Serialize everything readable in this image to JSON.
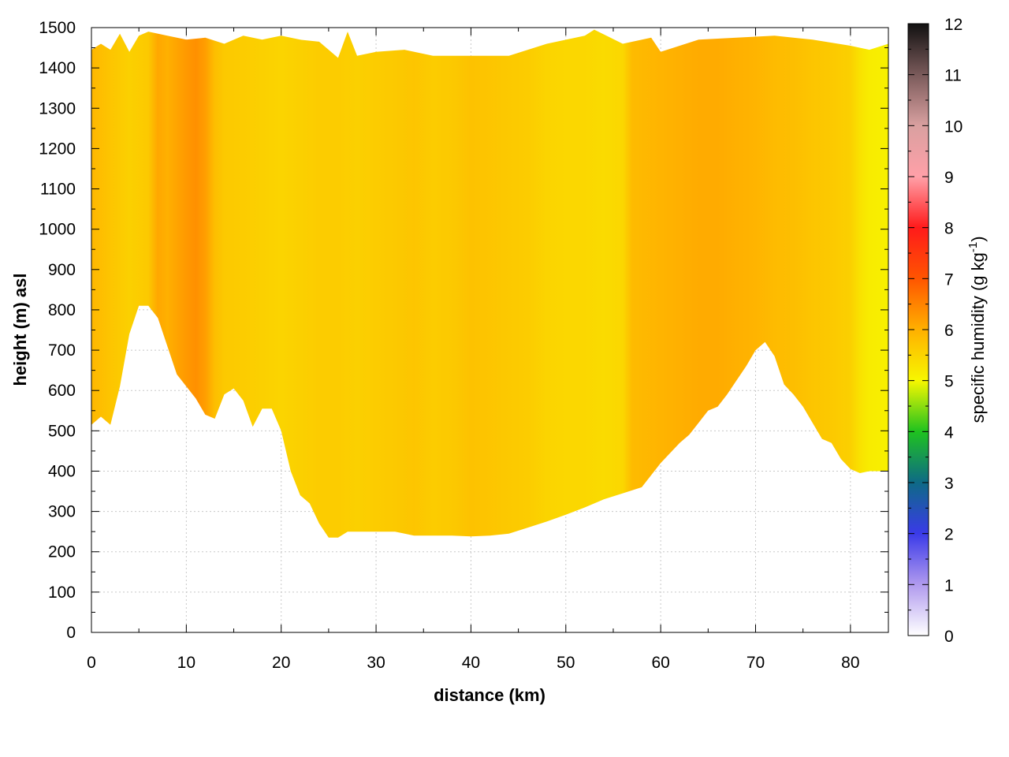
{
  "chart_data": {
    "type": "heatmap",
    "xlabel": "distance (km)",
    "ylabel": "height (m) asl",
    "colorbar": {
      "label_main": "specific humidity (g kg",
      "label_sup": "-1",
      "label_close": ")",
      "range": [
        0,
        12
      ],
      "ticks": [
        "0",
        "1",
        "2",
        "3",
        "4",
        "5",
        "6",
        "7",
        "8",
        "9",
        "10",
        "11",
        "12"
      ],
      "colormap": [
        [
          0,
          "#ffffff"
        ],
        [
          1,
          "#b09aee"
        ],
        [
          2,
          "#3a3ae8"
        ],
        [
          3,
          "#0e6a86"
        ],
        [
          4,
          "#1fc21f"
        ],
        [
          5,
          "#f7f700"
        ],
        [
          6,
          "#ffb000"
        ],
        [
          7,
          "#ff5500"
        ],
        [
          8,
          "#ff1a1a"
        ],
        [
          9,
          "#ffa0a8"
        ],
        [
          10,
          "#d9a0a0"
        ],
        [
          11,
          "#7a5a5a"
        ],
        [
          12,
          "#111111"
        ]
      ]
    },
    "xlim": [
      0,
      84
    ],
    "ylim": [
      0,
      1500
    ],
    "x_ticks": [
      "0",
      "10",
      "20",
      "30",
      "40",
      "50",
      "60",
      "70",
      "80"
    ],
    "y_ticks": [
      "0",
      "100",
      "200",
      "300",
      "400",
      "500",
      "600",
      "700",
      "800",
      "900",
      "1000",
      "1100",
      "1200",
      "1300",
      "1400",
      "1500"
    ],
    "grid": true,
    "terrain_height_m": {
      "x": [
        0,
        1,
        2,
        3,
        4,
        5,
        6,
        7,
        8,
        9,
        10,
        11,
        12,
        13,
        14,
        15,
        16,
        17,
        18,
        19,
        20,
        21,
        22,
        23,
        24,
        25,
        26,
        27,
        28,
        30,
        32,
        34,
        36,
        38,
        40,
        42,
        44,
        46,
        48,
        50,
        52,
        54,
        56,
        58,
        60,
        62,
        63,
        64,
        65,
        66,
        67,
        68,
        69,
        70,
        71,
        72,
        73,
        74,
        75,
        76,
        77,
        78,
        79,
        80,
        81,
        82,
        84
      ],
      "height": [
        515,
        535,
        515,
        610,
        740,
        810,
        810,
        780,
        710,
        640,
        610,
        580,
        540,
        530,
        590,
        605,
        575,
        510,
        555,
        555,
        500,
        400,
        340,
        320,
        270,
        235,
        235,
        250,
        250,
        250,
        250,
        240,
        240,
        240,
        238,
        240,
        245,
        260,
        275,
        292,
        310,
        330,
        345,
        360,
        420,
        470,
        490,
        520,
        550,
        560,
        590,
        625,
        660,
        700,
        720,
        685,
        615,
        590,
        560,
        520,
        480,
        470,
        430,
        405,
        395,
        400,
        400
      ]
    },
    "top_boundary_m": {
      "x": [
        0,
        1,
        2,
        3,
        4,
        5,
        6,
        8,
        10,
        12,
        14,
        16,
        18,
        20,
        22,
        24,
        26,
        27,
        28,
        30,
        33,
        36,
        40,
        44,
        48,
        52,
        53,
        56,
        59,
        60,
        64,
        68,
        72,
        76,
        80,
        82,
        84
      ],
      "height": [
        1445,
        1460,
        1445,
        1485,
        1440,
        1480,
        1490,
        1480,
        1470,
        1475,
        1460,
        1480,
        1470,
        1480,
        1470,
        1465,
        1425,
        1490,
        1430,
        1440,
        1445,
        1430,
        1430,
        1430,
        1460,
        1480,
        1495,
        1460,
        1475,
        1440,
        1470,
        1475,
        1480,
        1470,
        1455,
        1445,
        1460
      ]
    },
    "humidity_profile_g_per_kg": {
      "x": [
        0,
        2,
        4,
        6,
        7,
        8,
        10,
        11,
        12,
        13,
        14,
        16,
        18,
        20,
        22,
        24,
        26,
        28,
        30,
        32,
        34,
        36,
        38,
        40,
        42,
        44,
        46,
        48,
        50,
        52,
        54,
        56,
        57,
        60,
        62,
        64,
        66,
        68,
        70,
        72,
        74,
        76,
        78,
        80,
        81,
        82,
        84
      ],
      "q": [
        5.9,
        5.7,
        5.55,
        5.65,
        6.1,
        6.0,
        6.25,
        6.35,
        6.2,
        5.8,
        5.65,
        5.6,
        5.55,
        5.5,
        5.55,
        5.6,
        5.6,
        5.55,
        5.6,
        5.65,
        5.7,
        5.6,
        5.65,
        5.75,
        5.7,
        5.65,
        5.6,
        5.5,
        5.45,
        5.45,
        5.4,
        5.45,
        5.85,
        5.95,
        6.0,
        6.05,
        6.05,
        6.0,
        5.95,
        5.85,
        5.8,
        5.7,
        5.65,
        5.55,
        5.3,
        5.15,
        5.1
      ]
    }
  }
}
